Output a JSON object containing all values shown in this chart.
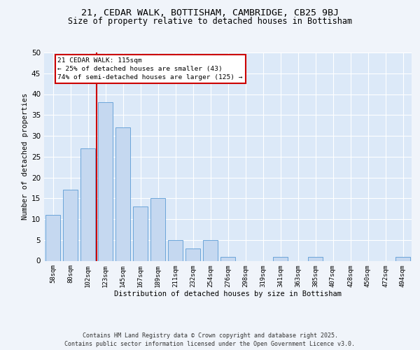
{
  "title1": "21, CEDAR WALK, BOTTISHAM, CAMBRIDGE, CB25 9BJ",
  "title2": "Size of property relative to detached houses in Bottisham",
  "xlabel": "Distribution of detached houses by size in Bottisham",
  "ylabel": "Number of detached properties",
  "categories": [
    "58sqm",
    "80sqm",
    "102sqm",
    "123sqm",
    "145sqm",
    "167sqm",
    "189sqm",
    "211sqm",
    "232sqm",
    "254sqm",
    "276sqm",
    "298sqm",
    "319sqm",
    "341sqm",
    "363sqm",
    "385sqm",
    "407sqm",
    "428sqm",
    "450sqm",
    "472sqm",
    "494sqm"
  ],
  "values": [
    11,
    17,
    27,
    38,
    32,
    13,
    15,
    5,
    3,
    5,
    1,
    0,
    0,
    1,
    0,
    1,
    0,
    0,
    0,
    0,
    1
  ],
  "bar_color": "#c5d8f0",
  "bar_edge_color": "#5b9bd5",
  "vline_idx": 3,
  "vline_color": "#cc0000",
  "annotation_line1": "21 CEDAR WALK: 115sqm",
  "annotation_line2": "← 25% of detached houses are smaller (43)",
  "annotation_line3": "74% of semi-detached houses are larger (125) →",
  "annotation_box_facecolor": "#ffffff",
  "annotation_box_edgecolor": "#cc0000",
  "ylim_max": 50,
  "yticks": [
    0,
    5,
    10,
    15,
    20,
    25,
    30,
    35,
    40,
    45,
    50
  ],
  "plot_bg_color": "#dce9f8",
  "fig_bg_color": "#f0f4fa",
  "grid_color": "#ffffff",
  "footer_line1": "Contains HM Land Registry data © Crown copyright and database right 2025.",
  "footer_line2": "Contains public sector information licensed under the Open Government Licence v3.0."
}
